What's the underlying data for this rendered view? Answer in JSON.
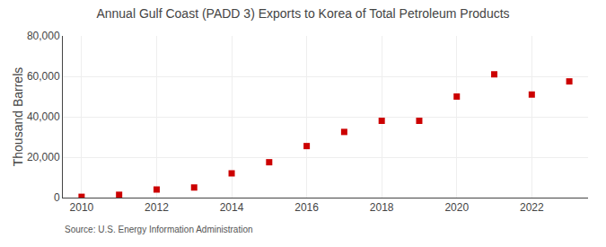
{
  "chart_data": {
    "type": "scatter",
    "title": "Annual Gulf Coast (PADD 3) Exports to Korea of Total Petroleum Products",
    "ylabel": "Thousand Barrels",
    "annotations": [
      "Source: U.S. Energy Information Administration"
    ],
    "x": [
      2010,
      2011,
      2012,
      2013,
      2014,
      2015,
      2016,
      2017,
      2018,
      2019,
      2020,
      2021,
      2022,
      2023
    ],
    "values": [
      400,
      1400,
      4000,
      5000,
      12000,
      17500,
      25500,
      32500,
      38000,
      38000,
      50000,
      61000,
      51000,
      57500
    ],
    "color": "#cc0000",
    "marker": "square",
    "xlim": [
      2009.5,
      2023.5
    ],
    "xticks": [
      2010,
      2012,
      2014,
      2016,
      2018,
      2020,
      2022
    ],
    "ylim": [
      0,
      80000
    ],
    "yticks": [
      0,
      {
        "value": 20000,
        "label": "20,000"
      },
      {
        "value": 40000,
        "label": "40,000"
      },
      {
        "value": 60000,
        "label": "60,000"
      },
      {
        "value": 80000,
        "label": "80,000"
      }
    ],
    "grid": true
  }
}
